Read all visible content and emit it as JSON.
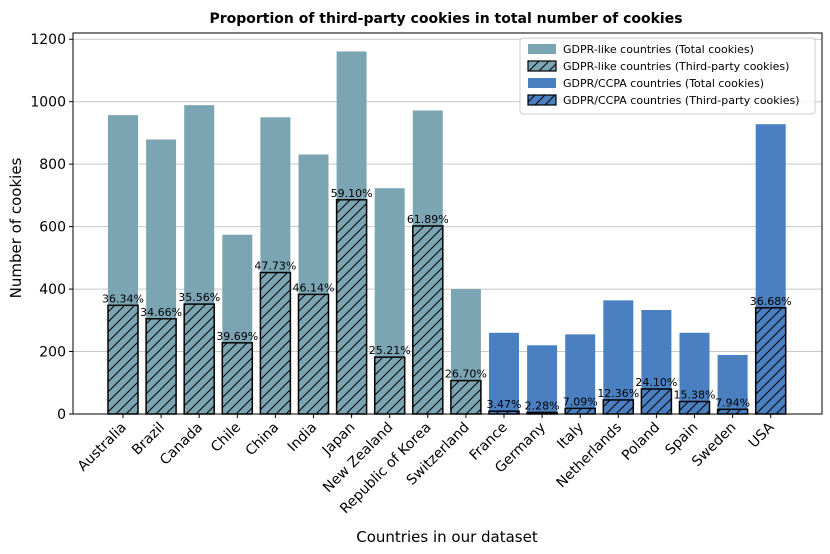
{
  "chart_data": {
    "type": "bar",
    "title": "Proportion of third-party cookies in total number of cookies",
    "xlabel": "Countries in our dataset",
    "ylabel": "Number of cookies",
    "ylim": [
      0,
      1220
    ],
    "yticks": [
      0,
      200,
      400,
      600,
      800,
      1000,
      1200
    ],
    "grid": "horizontal",
    "legend_position": "top-right",
    "colors": {
      "gdpr_like": "#7ba5b3",
      "gdpr_ccpa": "#4a80c1"
    },
    "legend": [
      "GDPR-like countries (Total cookies)",
      "GDPR-like countries (Third-party cookies)",
      "GDPR/CCPA countries (Total cookies)",
      "GDPR/CCPA countries (Third-party cookies)"
    ],
    "categories": [
      "Australia",
      "Brazil",
      "Canada",
      "Chile",
      "China",
      "India",
      "Japan",
      "New Zealand",
      "Republic of Korea",
      "Switzerland",
      "France",
      "Germany",
      "Italy",
      "Netherlands",
      "Poland",
      "Spain",
      "Sweden",
      "USA"
    ],
    "group": [
      "GDPR-like",
      "GDPR-like",
      "GDPR-like",
      "GDPR-like",
      "GDPR-like",
      "GDPR-like",
      "GDPR-like",
      "GDPR-like",
      "GDPR-like",
      "GDPR-like",
      "GDPR/CCPA",
      "GDPR/CCPA",
      "GDPR/CCPA",
      "GDPR/CCPA",
      "GDPR/CCPA",
      "GDPR/CCPA",
      "GDPR/CCPA",
      "GDPR/CCPA"
    ],
    "series": [
      {
        "name": "Total cookies",
        "values": [
          957,
          879,
          989,
          574,
          950,
          831,
          1161,
          723,
          972,
          400,
          260,
          220,
          255,
          364,
          333,
          260,
          189,
          928
        ]
      },
      {
        "name": "Third-party cookies",
        "values": [
          348,
          305,
          352,
          228,
          453,
          383,
          686,
          182,
          602,
          107,
          9,
          5,
          18,
          45,
          80,
          40,
          15,
          340
        ]
      }
    ],
    "percent_labels": [
      "36.34%",
      "34.66%",
      "35.56%",
      "39.69%",
      "47.73%",
      "46.14%",
      "59.10%",
      "25.21%",
      "61.89%",
      "26.70%",
      "3.47%",
      "2.28%",
      "7.09%",
      "12.36%",
      "24.10%",
      "15.38%",
      "7.94%",
      "36.68%"
    ]
  }
}
